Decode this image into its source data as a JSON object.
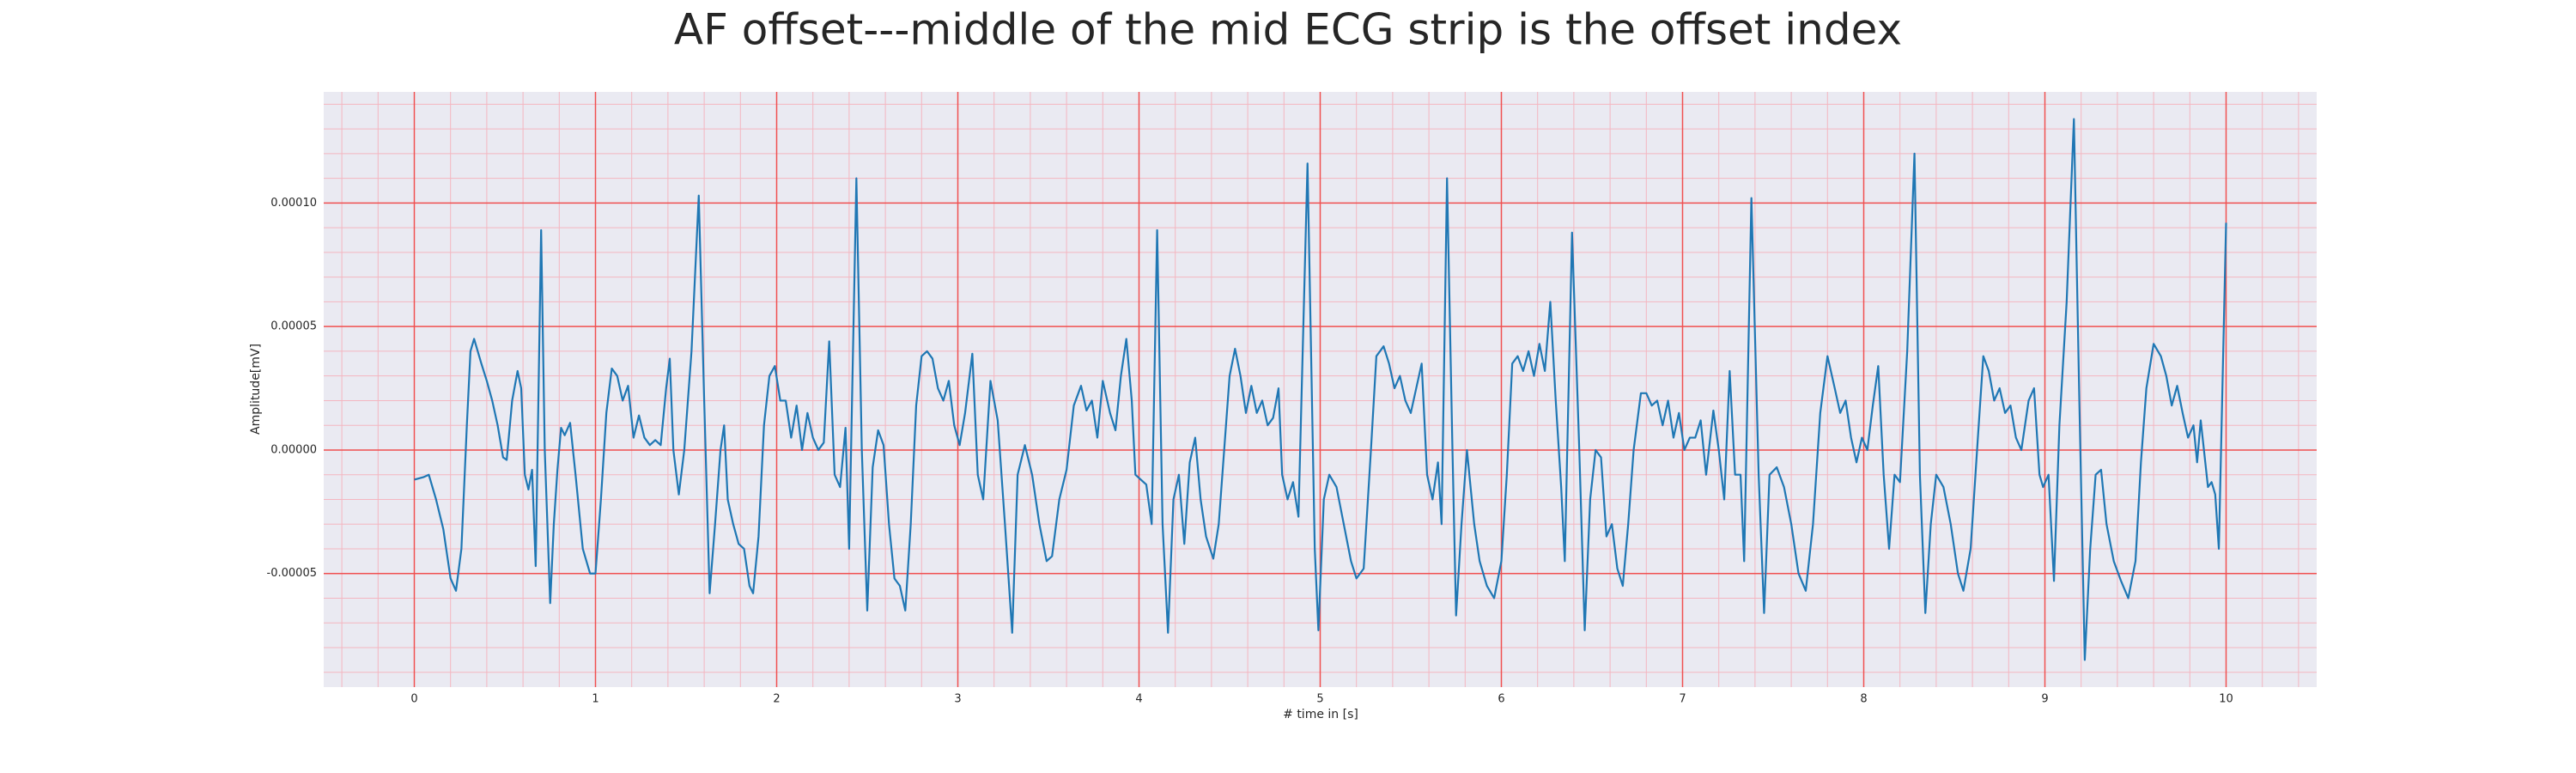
{
  "chart_data": {
    "type": "line",
    "title": "AF offset---middle of the mid ECG strip is the offset index",
    "xlabel": "# time in [s]",
    "ylabel": "Amplitude[mV]",
    "xlim": [
      -0.5,
      10.5
    ],
    "ylim": [
      -9.6e-05,
      0.000145
    ],
    "xticks": [
      0,
      1,
      2,
      3,
      4,
      5,
      6,
      7,
      8,
      9,
      10
    ],
    "yticks": [
      {
        "value": -5e-05,
        "label": "-0.00005"
      },
      {
        "value": 0,
        "label": "0.00000"
      },
      {
        "value": 5e-05,
        "label": "0.00005"
      },
      {
        "value": 0.0001,
        "label": "0.00010"
      }
    ],
    "grid": true,
    "minor_grid": true,
    "x": [
      0.0,
      0.05,
      0.08,
      0.12,
      0.16,
      0.2,
      0.23,
      0.26,
      0.29,
      0.31,
      0.33,
      0.37,
      0.4,
      0.43,
      0.46,
      0.49,
      0.51,
      0.54,
      0.57,
      0.59,
      0.61,
      0.63,
      0.65,
      0.67,
      0.7,
      0.72,
      0.75,
      0.77,
      0.79,
      0.81,
      0.83,
      0.86,
      0.89,
      0.93,
      0.97,
      1.0,
      1.03,
      1.06,
      1.09,
      1.12,
      1.15,
      1.18,
      1.21,
      1.24,
      1.27,
      1.3,
      1.33,
      1.36,
      1.39,
      1.41,
      1.43,
      1.46,
      1.49,
      1.53,
      1.57,
      1.6,
      1.63,
      1.66,
      1.69,
      1.71,
      1.73,
      1.76,
      1.79,
      1.82,
      1.85,
      1.87,
      1.9,
      1.93,
      1.96,
      1.99,
      2.02,
      2.05,
      2.08,
      2.11,
      2.14,
      2.17,
      2.2,
      2.23,
      2.26,
      2.29,
      2.32,
      2.35,
      2.38,
      2.4,
      2.44,
      2.47,
      2.5,
      2.53,
      2.56,
      2.59,
      2.62,
      2.65,
      2.68,
      2.71,
      2.74,
      2.77,
      2.8,
      2.83,
      2.86,
      2.89,
      2.92,
      2.95,
      2.98,
      3.01,
      3.04,
      3.08,
      3.11,
      3.14,
      3.18,
      3.22,
      3.26,
      3.3,
      3.33,
      3.37,
      3.41,
      3.45,
      3.49,
      3.52,
      3.56,
      3.6,
      3.64,
      3.68,
      3.71,
      3.74,
      3.77,
      3.8,
      3.84,
      3.87,
      3.9,
      3.93,
      3.96,
      3.98,
      4.01,
      4.04,
      4.07,
      4.1,
      4.13,
      4.16,
      4.19,
      4.22,
      4.25,
      4.28,
      4.31,
      4.34,
      4.37,
      4.41,
      4.44,
      4.47,
      4.5,
      4.53,
      4.56,
      4.59,
      4.62,
      4.65,
      4.68,
      4.71,
      4.74,
      4.77,
      4.79,
      4.82,
      4.85,
      4.88,
      4.93,
      4.97,
      4.99,
      5.02,
      5.05,
      5.09,
      5.13,
      5.17,
      5.2,
      5.24,
      5.28,
      5.31,
      5.35,
      5.38,
      5.41,
      5.44,
      5.47,
      5.5,
      5.53,
      5.56,
      5.59,
      5.62,
      5.65,
      5.67,
      5.7,
      5.73,
      5.75,
      5.78,
      5.81,
      5.85,
      5.88,
      5.92,
      5.96,
      6.0,
      6.03,
      6.06,
      6.09,
      6.12,
      6.15,
      6.18,
      6.21,
      6.24,
      6.27,
      6.3,
      6.33,
      6.35,
      6.39,
      6.43,
      6.46,
      6.49,
      6.52,
      6.55,
      6.58,
      6.61,
      6.64,
      6.67,
      6.7,
      6.73,
      6.77,
      6.8,
      6.83,
      6.86,
      6.89,
      6.92,
      6.95,
      6.98,
      7.01,
      7.04,
      7.07,
      7.1,
      7.13,
      7.17,
      7.2,
      7.23,
      7.26,
      7.29,
      7.32,
      7.34,
      7.38,
      7.42,
      7.45,
      7.48,
      7.52,
      7.56,
      7.6,
      7.64,
      7.68,
      7.72,
      7.76,
      7.8,
      7.84,
      7.87,
      7.9,
      7.93,
      7.96,
      7.99,
      8.02,
      8.05,
      8.08,
      8.11,
      8.14,
      8.17,
      8.2,
      8.24,
      8.28,
      8.31,
      8.34,
      8.37,
      8.4,
      8.44,
      8.48,
      8.52,
      8.55,
      8.59,
      8.63,
      8.66,
      8.69,
      8.72,
      8.75,
      8.78,
      8.81,
      8.84,
      8.87,
      8.91,
      8.94,
      8.97,
      8.99,
      9.02,
      9.05,
      9.08,
      9.12,
      9.16,
      9.19,
      9.22,
      9.25,
      9.28,
      9.31,
      9.34,
      9.38,
      9.42,
      9.46,
      9.5,
      9.53,
      9.56,
      9.6,
      9.64,
      9.67,
      9.7,
      9.73,
      9.76,
      9.79,
      9.82,
      9.84,
      9.86,
      9.9,
      9.92,
      9.94,
      9.96,
      10.0
    ],
    "series": [
      {
        "color": "#1f77b4",
        "values": [
          -1.2e-05,
          -1.1e-05,
          -1e-05,
          -2e-05,
          -3.2e-05,
          -5.2e-05,
          -5.7e-05,
          -4e-05,
          1e-05,
          4e-05,
          4.5e-05,
          3.5e-05,
          2.8e-05,
          2e-05,
          1e-05,
          -3e-06,
          -4e-06,
          2e-05,
          3.2e-05,
          2.5e-05,
          -1e-05,
          -1.6e-05,
          -8e-06,
          -4.7e-05,
          8.9e-05,
          0.0,
          -6.2e-05,
          -3e-05,
          -8e-06,
          9e-06,
          6e-06,
          1.1e-05,
          -1e-05,
          -4e-05,
          -5e-05,
          -5e-05,
          -2e-05,
          1.5e-05,
          3.3e-05,
          3e-05,
          2e-05,
          2.6e-05,
          5e-06,
          1.4e-05,
          5e-06,
          2e-06,
          4e-06,
          2e-06,
          2.5e-05,
          3.7e-05,
          0.0,
          -1.8e-05,
          0.0,
          4e-05,
          0.000103,
          2e-05,
          -5.8e-05,
          -3e-05,
          0.0,
          1e-05,
          -2e-05,
          -3e-05,
          -3.8e-05,
          -4e-05,
          -5.5e-05,
          -5.8e-05,
          -3.5e-05,
          1e-05,
          3e-05,
          3.4e-05,
          2e-05,
          2e-05,
          5e-06,
          1.8e-05,
          0.0,
          1.5e-05,
          5e-06,
          0.0,
          3e-06,
          4.4e-05,
          -1e-05,
          -1.5e-05,
          9e-06,
          -4e-05,
          0.00011,
          0.0,
          -6.5e-05,
          -7e-06,
          8e-06,
          2e-06,
          -3e-05,
          -5.2e-05,
          -5.5e-05,
          -6.5e-05,
          -3e-05,
          1.8e-05,
          3.8e-05,
          4e-05,
          3.7e-05,
          2.5e-05,
          2e-05,
          2.8e-05,
          1e-05,
          2e-06,
          1.5e-05,
          3.9e-05,
          -1e-05,
          -2e-05,
          2.8e-05,
          1.2e-05,
          -3e-05,
          -7.4e-05,
          -1e-05,
          2e-06,
          -1e-05,
          -3e-05,
          -4.5e-05,
          -4.3e-05,
          -2e-05,
          -8e-06,
          1.8e-05,
          2.6e-05,
          1.6e-05,
          2e-05,
          5e-06,
          2.8e-05,
          1.5e-05,
          8e-06,
          3e-05,
          4.5e-05,
          2e-05,
          -1e-05,
          -1.2e-05,
          -1.4e-05,
          -3e-05,
          8.9e-05,
          -3e-05,
          -7.4e-05,
          -2e-05,
          -1e-05,
          -3.8e-05,
          -5e-06,
          5e-06,
          -2e-05,
          -3.5e-05,
          -4.4e-05,
          -3e-05,
          0.0,
          3e-05,
          4.1e-05,
          3e-05,
          1.5e-05,
          2.6e-05,
          1.5e-05,
          2e-05,
          1e-05,
          1.3e-05,
          2.5e-05,
          -1e-05,
          -2e-05,
          -1.3e-05,
          -2.7e-05,
          0.000116,
          -4e-05,
          -7.3e-05,
          -2e-05,
          -1e-05,
          -1.5e-05,
          -3e-05,
          -4.5e-05,
          -5.2e-05,
          -4.8e-05,
          0.0,
          3.8e-05,
          4.2e-05,
          3.5e-05,
          2.5e-05,
          3e-05,
          2e-05,
          1.5e-05,
          2.5e-05,
          3.5e-05,
          -1e-05,
          -2e-05,
          -5e-06,
          -3e-05,
          0.00011,
          0.0,
          -6.7e-05,
          -3e-05,
          0.0,
          -3e-05,
          -4.5e-05,
          -5.5e-05,
          -6e-05,
          -4.5e-05,
          -1e-05,
          3.5e-05,
          3.8e-05,
          3.2e-05,
          4e-05,
          3e-05,
          4.3e-05,
          3.2e-05,
          6e-05,
          2e-05,
          -1.5e-05,
          -4.5e-05,
          8.8e-05,
          0.0,
          -7.3e-05,
          -2e-05,
          0.0,
          -3e-06,
          -3.5e-05,
          -3e-05,
          -4.8e-05,
          -5.5e-05,
          -3e-05,
          0.0,
          2.3e-05,
          2.3e-05,
          1.8e-05,
          2e-05,
          1e-05,
          2e-05,
          5e-06,
          1.5e-05,
          0.0,
          5e-06,
          5e-06,
          1.2e-05,
          -1e-05,
          1.6e-05,
          0.0,
          -2e-05,
          3.2e-05,
          -1e-05,
          -1e-05,
          -4.5e-05,
          0.000102,
          -1e-05,
          -6.6e-05,
          -1e-05,
          -7e-06,
          -1.5e-05,
          -3e-05,
          -5e-05,
          -5.7e-05,
          -3e-05,
          1.5e-05,
          3.8e-05,
          2.5e-05,
          1.5e-05,
          2e-05,
          5e-06,
          -5e-06,
          5e-06,
          0.0,
          1.8e-05,
          3.4e-05,
          -1e-05,
          -4e-05,
          -1e-05,
          -1.3e-05,
          4e-05,
          0.00012,
          -1e-05,
          -6.6e-05,
          -3e-05,
          -1e-05,
          -1.5e-05,
          -3e-05,
          -5e-05,
          -5.7e-05,
          -4e-05,
          5e-06,
          3.8e-05,
          3.2e-05,
          2e-05,
          2.5e-05,
          1.5e-05,
          1.8e-05,
          5e-06,
          0.0,
          2e-05,
          2.5e-05,
          -1e-05,
          -1.5e-05,
          -1e-05,
          -5.3e-05,
          1e-05,
          6e-05,
          0.000134,
          2e-05,
          -8.5e-05,
          -4e-05,
          -1e-05,
          -8e-06,
          -3e-05,
          -4.5e-05,
          -5.3e-05,
          -6e-05,
          -4.5e-05,
          -5e-06,
          2.5e-05,
          4.3e-05,
          3.8e-05,
          3e-05,
          1.8e-05,
          2.6e-05,
          1.5e-05,
          5e-06,
          1e-05,
          -5e-06,
          1.2e-05,
          -1.5e-05,
          -1.3e-05,
          -1.8e-05,
          -4e-05,
          9.2e-05
        ]
      }
    ]
  }
}
